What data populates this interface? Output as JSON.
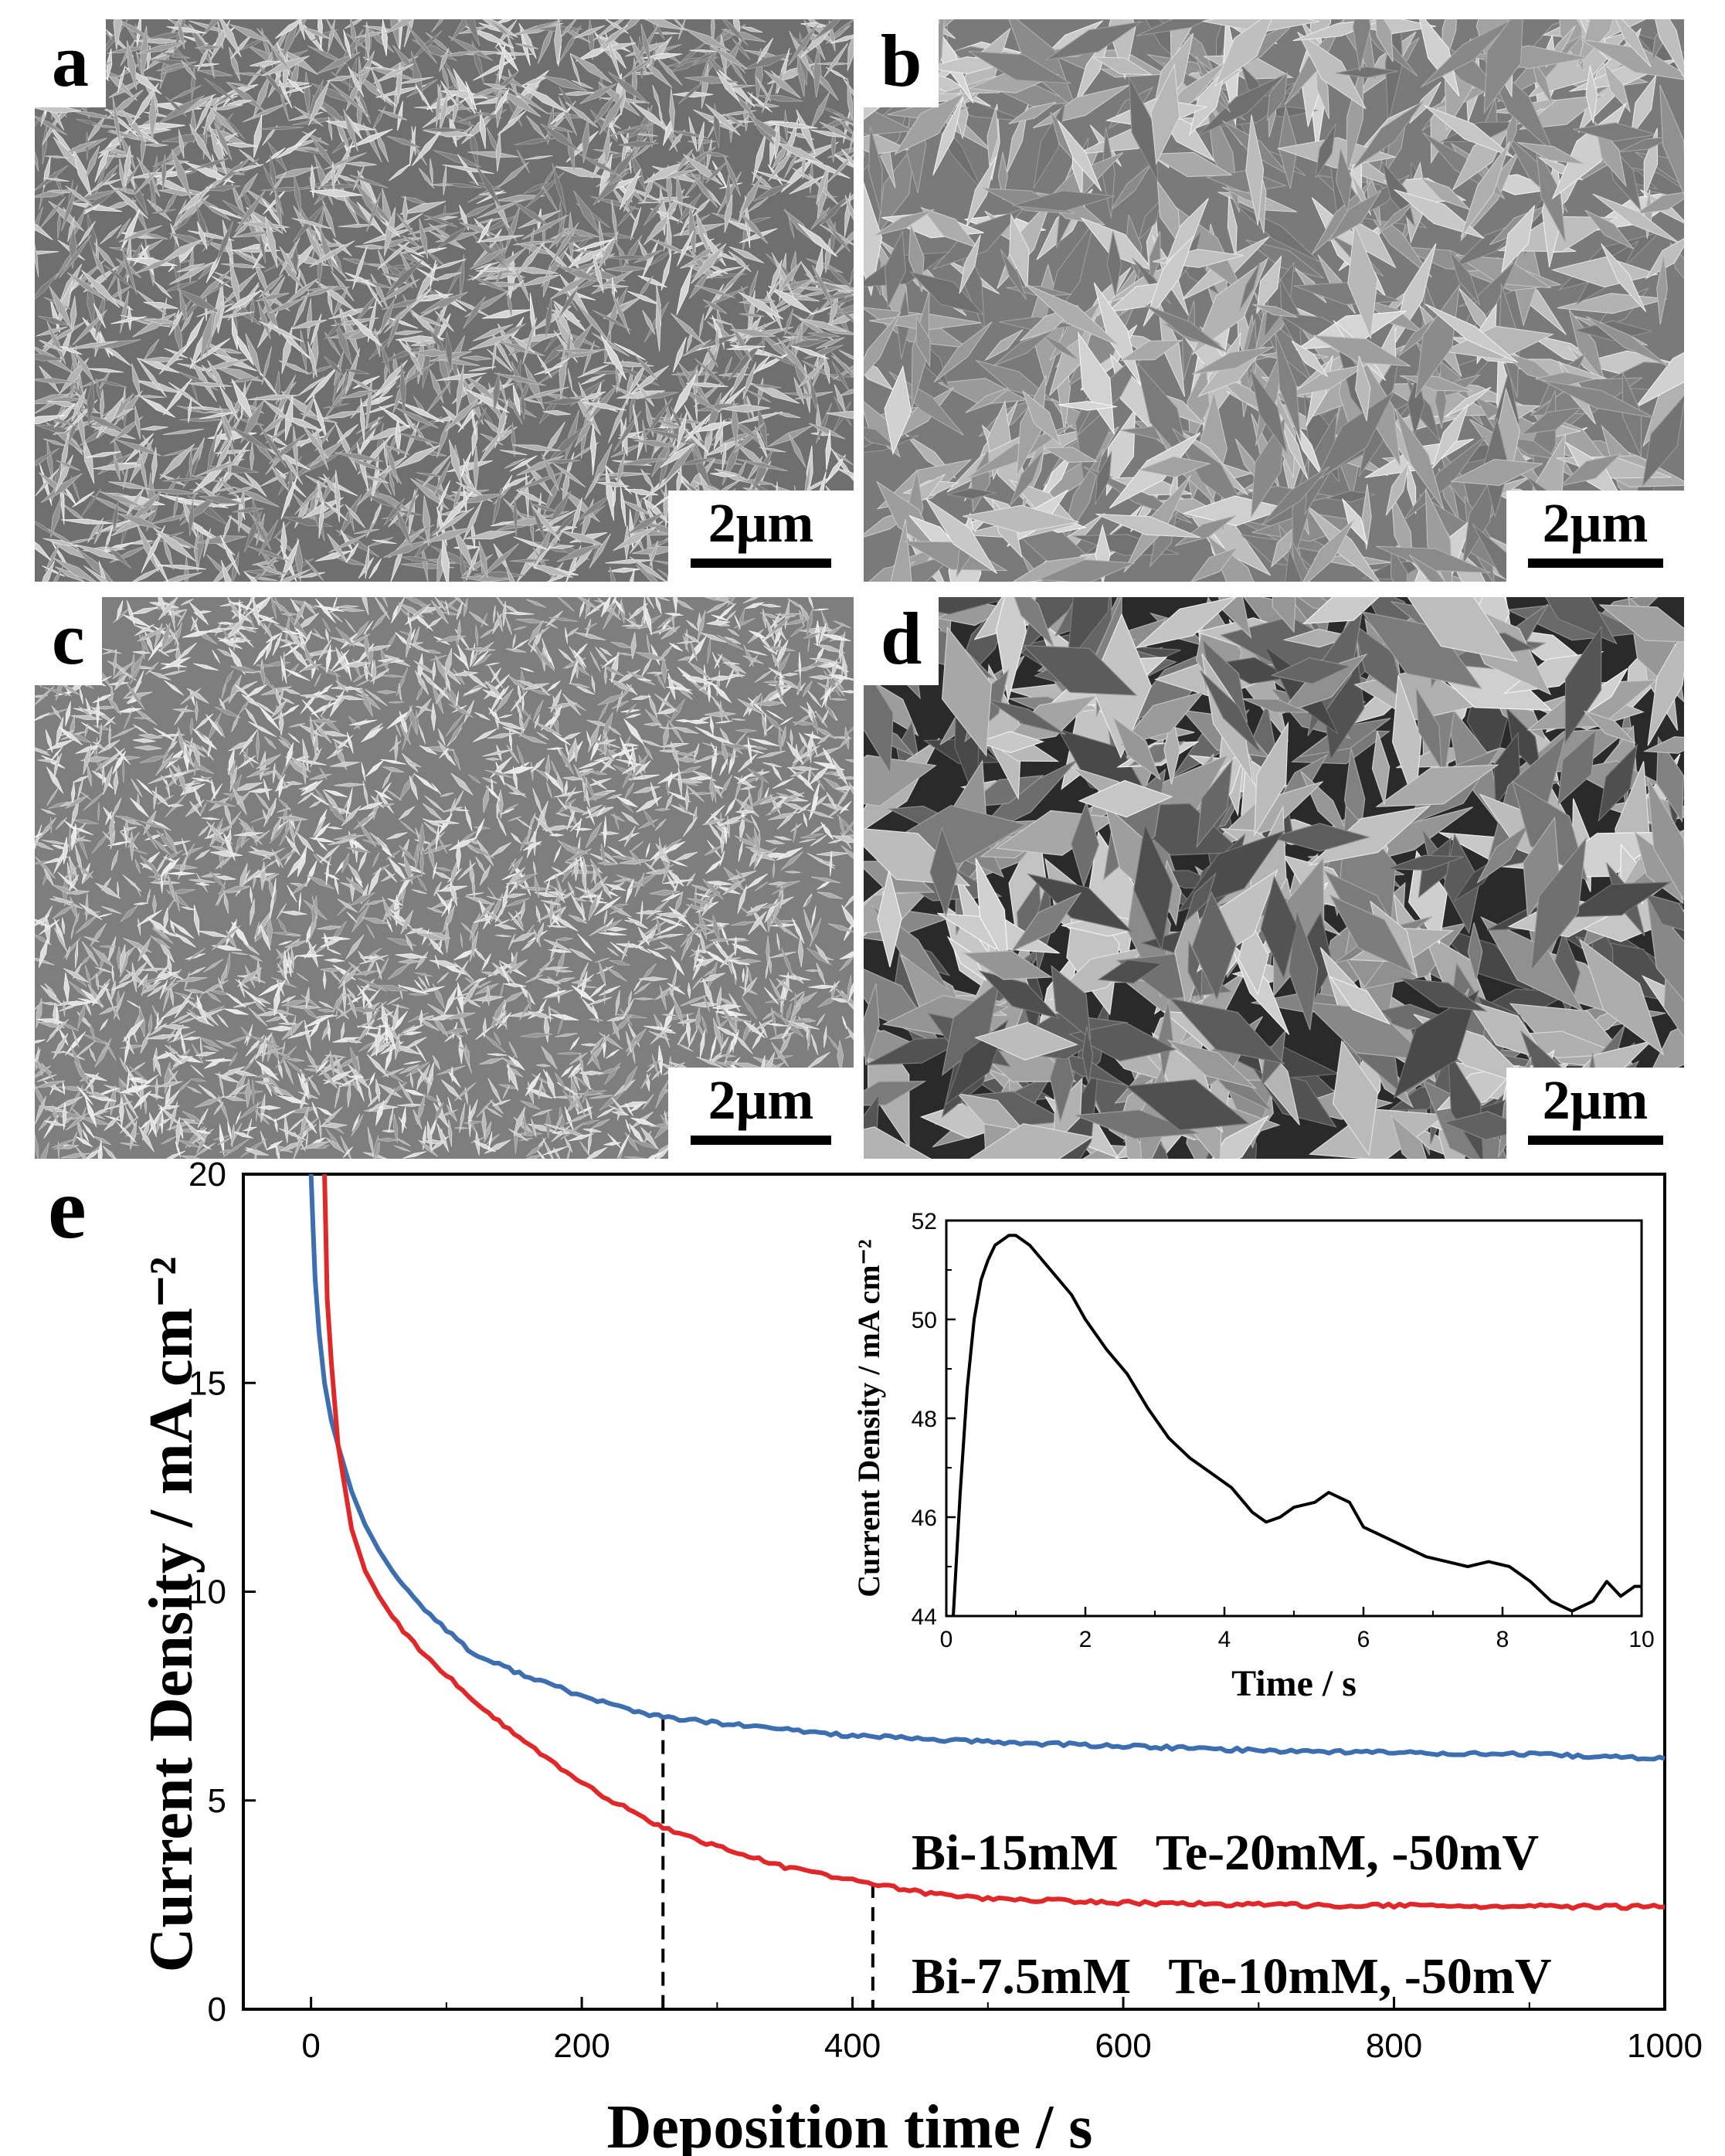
{
  "panels": [
    {
      "id": "a",
      "label": "a",
      "scale_text": "2μm"
    },
    {
      "id": "b",
      "label": "b",
      "scale_text": "2μm"
    },
    {
      "id": "c",
      "label": "c",
      "scale_text": "2μm"
    },
    {
      "id": "d",
      "label": "d",
      "scale_text": "2μm"
    }
  ],
  "panel_e_label": "e",
  "chart_data": [
    {
      "type": "line",
      "xlabel": "Deposition time / s",
      "ylabel": "Current Density / mA cm⁻²",
      "xlim": [
        -50,
        1000
      ],
      "ylim": [
        0,
        20
      ],
      "xticks": [
        "0",
        "200",
        "400",
        "600",
        "800",
        "1000"
      ],
      "yticks": [
        "0",
        "5",
        "10",
        "15",
        "20"
      ],
      "series": [
        {
          "name": "Bi-15mM   Te-20mM, -50mV",
          "color": "#3d6fb0",
          "x": [
            0,
            3,
            6,
            10,
            15,
            20,
            30,
            40,
            50,
            60,
            80,
            100,
            120,
            150,
            200,
            250,
            260,
            300,
            400,
            500,
            600,
            700,
            800,
            900,
            1000
          ],
          "y": [
            20,
            17.5,
            16.2,
            15.0,
            14.1,
            13.5,
            12.4,
            11.6,
            11.0,
            10.5,
            9.7,
            9.1,
            8.5,
            8.1,
            7.5,
            7.05,
            7.0,
            6.85,
            6.55,
            6.4,
            6.3,
            6.2,
            6.15,
            6.1,
            6.0
          ]
        },
        {
          "name": "Bi-7.5mM   Te-10mM, -50mV",
          "color": "#e0282a",
          "x": [
            10,
            12,
            15,
            20,
            30,
            40,
            50,
            60,
            80,
            100,
            120,
            150,
            200,
            250,
            260,
            300,
            350,
            400,
            415,
            450,
            500,
            600,
            700,
            800,
            900,
            1000
          ],
          "y": [
            20,
            17.0,
            15.5,
            13.5,
            11.5,
            10.5,
            9.9,
            9.4,
            8.6,
            8.0,
            7.4,
            6.6,
            5.4,
            4.5,
            4.35,
            3.9,
            3.4,
            3.1,
            3.0,
            2.8,
            2.65,
            2.55,
            2.5,
            2.48,
            2.46,
            2.45
          ]
        }
      ],
      "markers_x": [
        260,
        415
      ]
    },
    {
      "type": "line",
      "xlabel": "Time / s",
      "ylabel": "Current Density / mA cm⁻²",
      "xlim": [
        0,
        10
      ],
      "ylim": [
        44,
        52
      ],
      "xticks": [
        "0",
        "2",
        "4",
        "6",
        "8",
        "10"
      ],
      "yticks": [
        "44",
        "46",
        "48",
        "50",
        "52"
      ],
      "series": [
        {
          "color": "#000000",
          "x": [
            0.1,
            0.2,
            0.3,
            0.4,
            0.5,
            0.6,
            0.7,
            0.8,
            0.9,
            1.0,
            1.2,
            1.5,
            1.8,
            2.0,
            2.3,
            2.6,
            2.9,
            3.2,
            3.5,
            3.8,
            4.1,
            4.4,
            4.6,
            4.8,
            5.0,
            5.3,
            5.5,
            5.8,
            6.0,
            6.3,
            6.6,
            6.9,
            7.2,
            7.5,
            7.8,
            8.1,
            8.4,
            8.7,
            9.0,
            9.3,
            9.5,
            9.7,
            9.9,
            10.0
          ],
          "y": [
            44.0,
            46.5,
            48.6,
            50.0,
            50.8,
            51.2,
            51.5,
            51.6,
            51.7,
            51.7,
            51.5,
            51.0,
            50.5,
            50.0,
            49.4,
            48.9,
            48.2,
            47.6,
            47.2,
            46.9,
            46.6,
            46.1,
            45.9,
            46.0,
            46.2,
            46.3,
            46.5,
            46.3,
            45.8,
            45.6,
            45.4,
            45.2,
            45.1,
            45.0,
            45.1,
            45.0,
            44.7,
            44.3,
            44.1,
            44.3,
            44.7,
            44.4,
            44.6,
            44.6
          ]
        }
      ]
    }
  ]
}
